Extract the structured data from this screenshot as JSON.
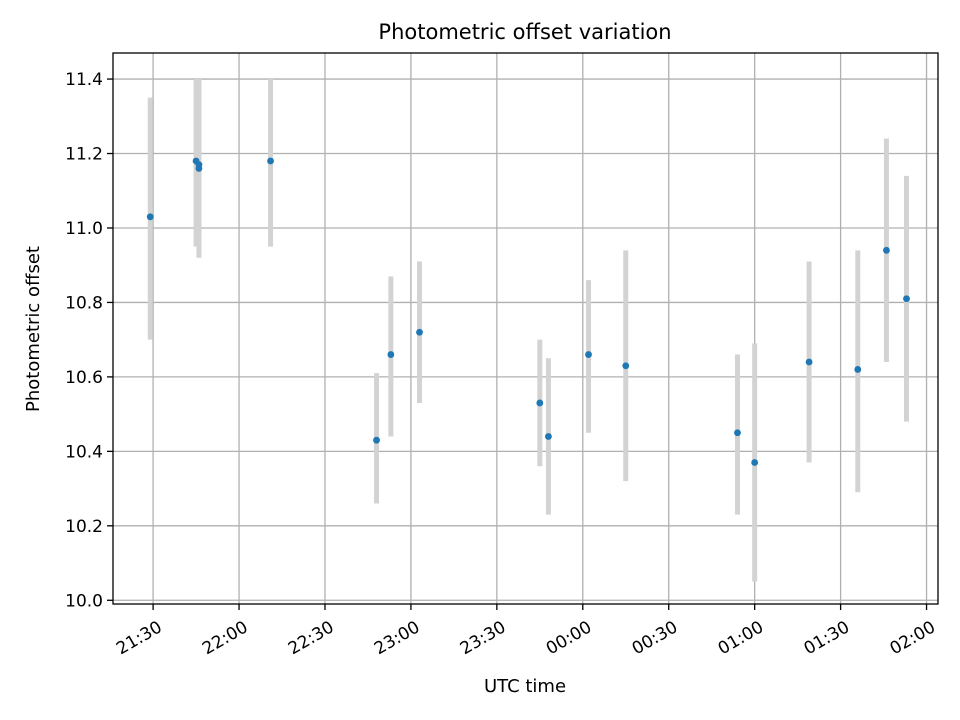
{
  "chart_data": {
    "type": "scatter",
    "title": "Photometric offset variation",
    "xlabel": "UTC time",
    "ylabel": "Photometric offset",
    "x_ticks": [
      "21:30",
      "22:00",
      "22:30",
      "23:00",
      "23:30",
      "00:00",
      "00:30",
      "01:00",
      "01:30",
      "02:00"
    ],
    "y_ticks": [
      "10.0",
      "10.2",
      "10.4",
      "10.6",
      "10.8",
      "11.0",
      "11.2",
      "11.4"
    ],
    "xlim": [
      "21:16",
      "02:04"
    ],
    "ylim": [
      9.99,
      11.47
    ],
    "grid": true,
    "point_color": "#1f77b4",
    "errorbar_color": "#d3d3d3",
    "points": [
      {
        "x": "21:29",
        "y": 11.03,
        "ylo": 10.7,
        "yhi": 11.35
      },
      {
        "x": "21:45",
        "y": 11.18,
        "ylo": 10.95,
        "yhi": 11.4
      },
      {
        "x": "21:46",
        "y": 11.16,
        "ylo": 10.92,
        "yhi": 11.4
      },
      {
        "x": "21:46",
        "y": 11.17,
        "ylo": 10.95,
        "yhi": 11.4
      },
      {
        "x": "22:11",
        "y": 11.18,
        "ylo": 10.95,
        "yhi": 11.4
      },
      {
        "x": "22:48",
        "y": 10.43,
        "ylo": 10.26,
        "yhi": 10.61
      },
      {
        "x": "22:53",
        "y": 10.66,
        "ylo": 10.44,
        "yhi": 10.87
      },
      {
        "x": "23:03",
        "y": 10.72,
        "ylo": 10.53,
        "yhi": 10.91
      },
      {
        "x": "23:45",
        "y": 10.53,
        "ylo": 10.36,
        "yhi": 10.7
      },
      {
        "x": "23:48",
        "y": 10.44,
        "ylo": 10.23,
        "yhi": 10.65
      },
      {
        "x": "00:02",
        "y": 10.66,
        "ylo": 10.45,
        "yhi": 10.86
      },
      {
        "x": "00:15",
        "y": 10.63,
        "ylo": 10.32,
        "yhi": 10.94
      },
      {
        "x": "00:54",
        "y": 10.45,
        "ylo": 10.23,
        "yhi": 10.66
      },
      {
        "x": "01:00",
        "y": 10.37,
        "ylo": 10.05,
        "yhi": 10.69
      },
      {
        "x": "01:19",
        "y": 10.64,
        "ylo": 10.37,
        "yhi": 10.91
      },
      {
        "x": "01:36",
        "y": 10.62,
        "ylo": 10.29,
        "yhi": 10.94
      },
      {
        "x": "01:46",
        "y": 10.94,
        "ylo": 10.64,
        "yhi": 11.24
      },
      {
        "x": "01:53",
        "y": 10.81,
        "ylo": 10.48,
        "yhi": 11.14
      }
    ]
  }
}
